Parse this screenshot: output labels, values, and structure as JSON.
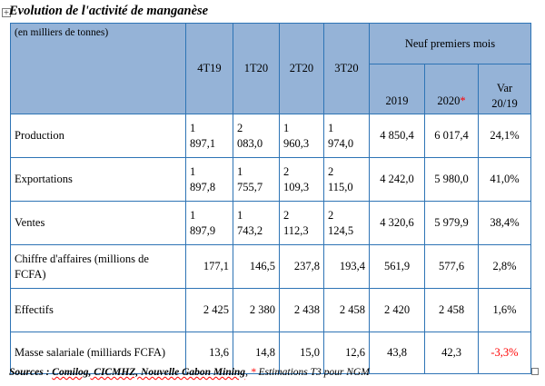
{
  "title": "Evolution de l'activité de manganèse",
  "unit_label": "(en milliers de tonnes)",
  "header": {
    "group_label": "Neuf premiers mois",
    "periods": [
      "4T19",
      "1T20",
      "2T20",
      "3T20"
    ],
    "year_2019": "2019",
    "year_2020": "2020",
    "year_2020_mark": "*",
    "var_line1": "Var",
    "var_line2": "20/19"
  },
  "rows": [
    {
      "label": "Production",
      "quarters": [
        [
          "1",
          "897,1"
        ],
        [
          "2",
          "083,0"
        ],
        [
          "1",
          "960,3"
        ],
        [
          "1",
          "974,0"
        ]
      ],
      "y2019": "4 850,4",
      "y2020": "6 017,4",
      "var": "24,1%"
    },
    {
      "label": "Exportations",
      "quarters": [
        [
          "1",
          "897,8"
        ],
        [
          "1",
          "755,7"
        ],
        [
          "2",
          "109,3"
        ],
        [
          "2",
          "115,0"
        ]
      ],
      "y2019": "4 242,0",
      "y2020": "5 980,0",
      "var": "41,0%"
    },
    {
      "label": "Ventes",
      "quarters": [
        [
          "1",
          "897,9"
        ],
        [
          "1",
          "743,2"
        ],
        [
          "2",
          "112,3"
        ],
        [
          "2",
          "124,5"
        ]
      ],
      "y2019": "4 320,6",
      "y2020": "5 979,9",
      "var": "38,4%"
    },
    {
      "label": "Chiffre d'affaires (millions de FCFA)",
      "quarters": [
        "177,1",
        "146,5",
        "237,8",
        "193,4"
      ],
      "y2019": "561,9",
      "y2020": "577,6",
      "var": "2,8%"
    },
    {
      "label": "Effectifs",
      "quarters": [
        "2 425",
        "2 380",
        "2 438",
        "2 458"
      ],
      "y2019": "2 420",
      "y2020": "2 458",
      "var": "1,6%"
    },
    {
      "label": "Masse salariale (milliards FCFA)",
      "quarters": [
        "13,6",
        "14,8",
        "15,0",
        "12,6"
      ],
      "y2019": "43,8",
      "y2020": "42,3",
      "var": "-3,3%"
    }
  ],
  "source": {
    "prefix": "Sources : ",
    "names": "Comilog, CICMHZ, Nouvelle Gabon Mining",
    "sep": ", ",
    "star": "*",
    "note": " Estimations T3 pour NGM"
  },
  "colors": {
    "header_fill": "#95b3d7",
    "border": "#2e74b5",
    "negative": "#ff0000"
  }
}
